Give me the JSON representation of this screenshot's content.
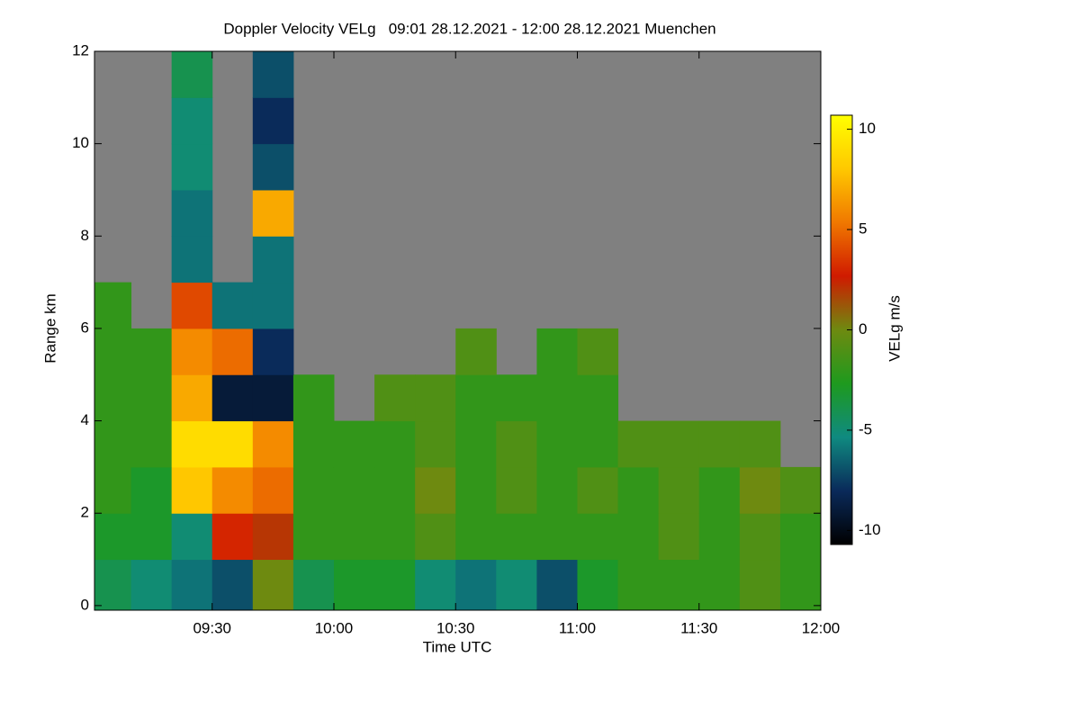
{
  "chart_data": {
    "type": "heatmap",
    "title": "Doppler Velocity VELg   09:01 28.12.2021 - 12:00 28.12.2021 Muenchen",
    "x_label": "Time UTC",
    "y_label": "Range km",
    "colorbar_label": "VELg m/s",
    "xlim": [
      9.0167,
      12.0
    ],
    "xticks": [
      {
        "value": 9.5,
        "label": "09:30"
      },
      {
        "value": 10.0,
        "label": "10:00"
      },
      {
        "value": 10.5,
        "label": "10:30"
      },
      {
        "value": 11.0,
        "label": "11:00"
      },
      {
        "value": 11.5,
        "label": "11:30"
      },
      {
        "value": 12.0,
        "label": "12:00"
      }
    ],
    "ylim": [
      -0.1,
      12
    ],
    "yticks": [
      0,
      2,
      4,
      6,
      8,
      10,
      12
    ],
    "clim": [
      -10.7,
      10.7
    ],
    "cticks": [
      -10,
      -5,
      0,
      5,
      10
    ],
    "colorscale": [
      "#000000",
      "#0a2a5a",
      "#0f8a80",
      "#1e9a1e",
      "#6e8a10",
      "#d01a00",
      "#f07800",
      "#ffc800",
      "#ffff00"
    ],
    "missing_color": "#808080",
    "x": [
      9.0833,
      9.25,
      9.4167,
      9.5833,
      9.75,
      9.9167,
      10.0833,
      10.25,
      10.4167,
      10.5833,
      10.75,
      10.9167,
      11.0833,
      11.25,
      11.4167,
      11.5833,
      11.75,
      11.9167
    ],
    "y": [
      0.5,
      1.5,
      2.5,
      3.5,
      4.5,
      5.5,
      6.5,
      7.5,
      8.5,
      9.5,
      10.5,
      11.5
    ],
    "z": [
      [
        -4,
        -5,
        -6,
        -7,
        0,
        -4,
        -3,
        -3,
        -5,
        -6,
        -5,
        -7,
        -3,
        -2,
        -2,
        -2,
        -1,
        -2
      ],
      [
        -3,
        -3,
        -5,
        3,
        2,
        -2,
        -2,
        -2,
        -1,
        -2,
        -2,
        -2,
        -2,
        -2,
        -1,
        -2,
        -1,
        -2
      ],
      [
        -2,
        -3,
        8,
        6,
        5,
        -2,
        -2,
        -2,
        0,
        -2,
        -1,
        -2,
        -1,
        -2,
        -1,
        -2,
        0,
        -1
      ],
      [
        -2,
        -2,
        9,
        9,
        6,
        -2,
        -2,
        -2,
        -1,
        -2,
        -1,
        -2,
        -2,
        -1,
        -1,
        -1,
        -1,
        null
      ],
      [
        -2,
        -2,
        7,
        -9,
        -9,
        -2,
        null,
        -1,
        -1,
        -2,
        -2,
        -2,
        -2,
        null,
        null,
        null,
        null,
        null
      ],
      [
        -2,
        -2,
        6,
        5,
        -8,
        null,
        null,
        null,
        null,
        -1,
        null,
        -2,
        -1,
        null,
        null,
        null,
        null,
        null
      ],
      [
        -2,
        null,
        4,
        -6,
        -6,
        null,
        null,
        null,
        null,
        null,
        null,
        null,
        null,
        null,
        null,
        null,
        null,
        null
      ],
      [
        null,
        null,
        -6,
        null,
        -6,
        null,
        null,
        null,
        null,
        null,
        null,
        null,
        null,
        null,
        null,
        null,
        null,
        null
      ],
      [
        null,
        null,
        -6,
        null,
        7,
        null,
        null,
        null,
        null,
        null,
        null,
        null,
        null,
        null,
        null,
        null,
        null,
        null
      ],
      [
        null,
        null,
        -5,
        null,
        -7,
        null,
        null,
        null,
        null,
        null,
        null,
        null,
        null,
        null,
        null,
        null,
        null,
        null
      ],
      [
        null,
        null,
        -5,
        null,
        -8,
        null,
        null,
        null,
        null,
        null,
        null,
        null,
        null,
        null,
        null,
        null,
        null,
        null
      ],
      [
        null,
        null,
        -4,
        null,
        -7,
        null,
        null,
        null,
        null,
        null,
        null,
        null,
        null,
        null,
        null,
        null,
        null,
        null
      ]
    ]
  }
}
